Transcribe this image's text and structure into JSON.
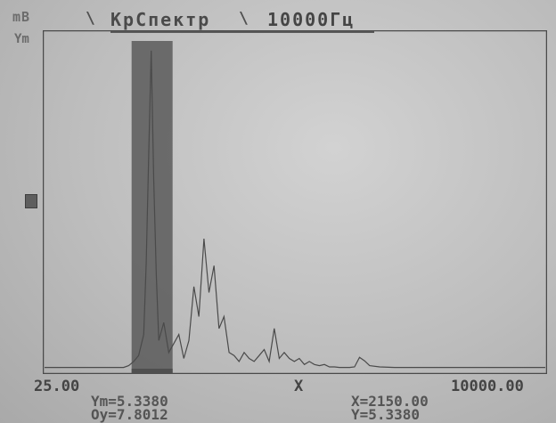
{
  "header": {
    "unit": "mB",
    "y_axis_label": "Ym",
    "separator": "\\",
    "mode": "КрСпектр",
    "band": "10000Гц"
  },
  "axis": {
    "x_min_label": "25.00",
    "x_axis_label": "X",
    "x_max_label": "10000.00"
  },
  "readouts": {
    "ym": "Ym=5.3380",
    "oy": "Oy=7.8012",
    "x": "X=2150.00",
    "y": "Y=5.3380"
  },
  "colors": {
    "plot_line": "#4a4a4a",
    "cursor_band": "#5a5a5a",
    "cursor_bar": "#4f4f4f"
  },
  "chart_data": {
    "type": "line",
    "xlim": [
      25,
      10000
    ],
    "ylim": [
      0,
      5.338
    ],
    "cursor": {
      "x": 2150.0,
      "y": 5.338
    },
    "x": [
      25,
      100,
      200,
      300,
      400,
      500,
      600,
      700,
      800,
      900,
      1000,
      1100,
      1200,
      1300,
      1400,
      1500,
      1600,
      1700,
      1800,
      1900,
      2000,
      2050,
      2100,
      2150,
      2200,
      2250,
      2300,
      2400,
      2500,
      2600,
      2700,
      2800,
      2900,
      3000,
      3100,
      3200,
      3300,
      3400,
      3500,
      3600,
      3700,
      3800,
      3900,
      4000,
      4100,
      4200,
      4300,
      4400,
      4500,
      4600,
      4700,
      4800,
      4900,
      5000,
      5100,
      5200,
      5300,
      5400,
      5500,
      5600,
      5700,
      5800,
      5900,
      6000,
      6100,
      6200,
      6300,
      6400,
      6500,
      6700,
      7000,
      7500,
      8000,
      8500,
      9000,
      9500,
      10000
    ],
    "y": [
      0.05,
      0.05,
      0.05,
      0.05,
      0.05,
      0.05,
      0.05,
      0.05,
      0.05,
      0.05,
      0.05,
      0.05,
      0.05,
      0.05,
      0.05,
      0.05,
      0.05,
      0.08,
      0.15,
      0.25,
      0.6,
      1.8,
      3.6,
      5.338,
      3.2,
      1.6,
      0.5,
      0.8,
      0.3,
      0.45,
      0.6,
      0.2,
      0.5,
      1.4,
      0.9,
      2.2,
      1.3,
      1.75,
      0.7,
      0.9,
      0.3,
      0.25,
      0.15,
      0.3,
      0.2,
      0.15,
      0.25,
      0.35,
      0.15,
      0.7,
      0.2,
      0.3,
      0.2,
      0.15,
      0.2,
      0.1,
      0.15,
      0.1,
      0.08,
      0.1,
      0.06,
      0.06,
      0.05,
      0.05,
      0.05,
      0.06,
      0.22,
      0.16,
      0.08,
      0.06,
      0.05,
      0.05,
      0.05,
      0.05,
      0.05,
      0.05,
      0.05
    ]
  }
}
